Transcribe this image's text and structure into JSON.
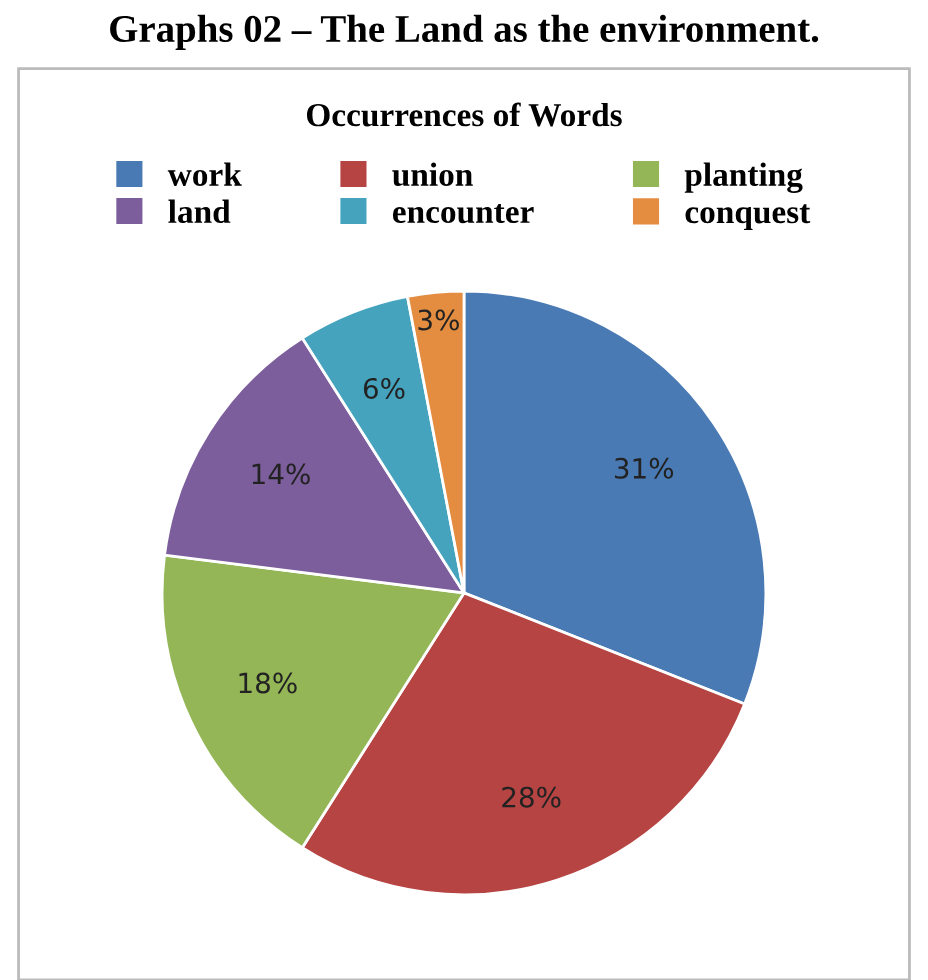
{
  "chart_data": {
    "type": "pie",
    "title": "Graphs 02 – The Land as the environment.",
    "subtitle": "Occurrences of Words",
    "categories": [
      "work",
      "union",
      "planting",
      "land",
      "encounter",
      "conquest"
    ],
    "values": [
      31,
      28,
      18,
      14,
      6,
      3
    ],
    "colors": [
      "#4a7ab4",
      "#b54442",
      "#94b657",
      "#7c5e9c",
      "#45a3be",
      "#e48d40"
    ],
    "value_labels": [
      "31%",
      "28%",
      "18%",
      "14%",
      "6%",
      "3%"
    ],
    "legend": "top"
  }
}
